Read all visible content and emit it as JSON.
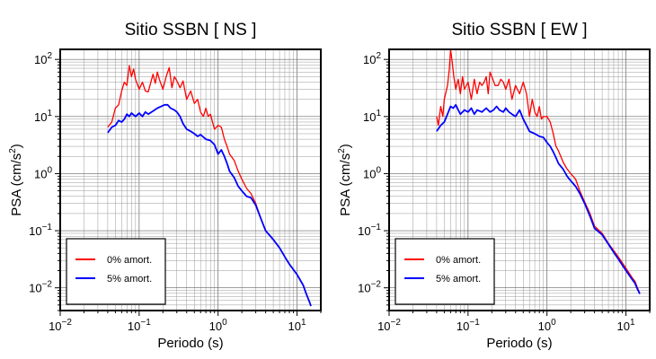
{
  "chart_data": [
    {
      "type": "line",
      "title": "Sitio SSBN [ NS ]",
      "xlabel": "Periodo (s)",
      "ylabel_main": "PSA (cm/s",
      "ylabel_sup": "2",
      "ylabel_end": ")",
      "xscale": "log",
      "yscale": "log",
      "xlim": [
        0.01,
        20
      ],
      "ylim": [
        0.004,
        150
      ],
      "grid": true,
      "legend_position": "bottom-left",
      "x_tick_labels": [
        {
          "value": 0.01,
          "base": "10",
          "exp": "-2"
        },
        {
          "value": 0.1,
          "base": "10",
          "exp": "-1"
        },
        {
          "value": 1,
          "base": "10",
          "exp": "0"
        },
        {
          "value": 10,
          "base": "10",
          "exp": "1"
        }
      ],
      "y_tick_labels": [
        {
          "value": 0.01,
          "base": "10",
          "exp": "-2"
        },
        {
          "value": 0.1,
          "base": "10",
          "exp": "-1"
        },
        {
          "value": 1,
          "base": "10",
          "exp": "0"
        },
        {
          "value": 10,
          "base": "10",
          "exp": "1"
        },
        {
          "value": 100,
          "base": "10",
          "exp": "2"
        }
      ],
      "series": [
        {
          "name": "0% amort.",
          "color": "#ff0000",
          "points": [
            [
              0.04,
              6.5
            ],
            [
              0.045,
              8
            ],
            [
              0.05,
              14
            ],
            [
              0.055,
              16
            ],
            [
              0.06,
              28
            ],
            [
              0.065,
              40
            ],
            [
              0.07,
              35
            ],
            [
              0.075,
              78
            ],
            [
              0.08,
              50
            ],
            [
              0.085,
              68
            ],
            [
              0.09,
              45
            ],
            [
              0.1,
              30
            ],
            [
              0.11,
              40
            ],
            [
              0.12,
              28
            ],
            [
              0.13,
              27
            ],
            [
              0.15,
              55
            ],
            [
              0.16,
              38
            ],
            [
              0.17,
              60
            ],
            [
              0.18,
              45
            ],
            [
              0.2,
              30
            ],
            [
              0.22,
              50
            ],
            [
              0.24,
              72
            ],
            [
              0.26,
              32
            ],
            [
              0.28,
              50
            ],
            [
              0.3,
              42
            ],
            [
              0.33,
              32
            ],
            [
              0.36,
              42
            ],
            [
              0.4,
              20
            ],
            [
              0.45,
              28
            ],
            [
              0.5,
              17
            ],
            [
              0.55,
              20
            ],
            [
              0.6,
              12
            ],
            [
              0.65,
              10
            ],
            [
              0.7,
              14
            ],
            [
              0.75,
              10
            ],
            [
              0.8,
              11
            ],
            [
              0.85,
              8
            ],
            [
              0.9,
              6
            ],
            [
              1.0,
              7
            ],
            [
              1.1,
              6.5
            ],
            [
              1.2,
              4
            ],
            [
              1.3,
              3
            ],
            [
              1.4,
              2.2
            ],
            [
              1.6,
              1.7
            ],
            [
              1.8,
              1.1
            ],
            [
              2.0,
              0.8
            ],
            [
              2.3,
              0.55
            ],
            [
              2.6,
              0.45
            ],
            [
              3.0,
              0.3
            ],
            [
              3.5,
              0.16
            ],
            [
              4.0,
              0.1
            ],
            [
              5.0,
              0.07
            ],
            [
              6.0,
              0.05
            ],
            [
              7.0,
              0.035
            ],
            [
              8.0,
              0.026
            ],
            [
              10,
              0.017
            ],
            [
              12,
              0.011
            ],
            [
              13,
              0.008
            ],
            [
              14.5,
              0.0055
            ],
            [
              15,
              0.0048
            ]
          ]
        },
        {
          "name": "5% amort.",
          "color": "#0000ff",
          "points": [
            [
              0.04,
              5.2
            ],
            [
              0.045,
              6.5
            ],
            [
              0.05,
              7
            ],
            [
              0.055,
              8.5
            ],
            [
              0.06,
              8
            ],
            [
              0.065,
              9
            ],
            [
              0.07,
              11
            ],
            [
              0.075,
              10
            ],
            [
              0.08,
              11.5
            ],
            [
              0.09,
              10
            ],
            [
              0.1,
              11.5
            ],
            [
              0.11,
              10
            ],
            [
              0.12,
              12
            ],
            [
              0.13,
              11
            ],
            [
              0.15,
              12.5
            ],
            [
              0.17,
              14
            ],
            [
              0.19,
              15
            ],
            [
              0.21,
              16
            ],
            [
              0.23,
              16
            ],
            [
              0.25,
              14
            ],
            [
              0.28,
              13
            ],
            [
              0.3,
              12
            ],
            [
              0.33,
              10
            ],
            [
              0.36,
              7.5
            ],
            [
              0.4,
              6
            ],
            [
              0.45,
              5.5
            ],
            [
              0.5,
              5
            ],
            [
              0.55,
              4.5
            ],
            [
              0.6,
              4.8
            ],
            [
              0.7,
              4
            ],
            [
              0.8,
              3.8
            ],
            [
              0.9,
              3.2
            ],
            [
              1.0,
              2.2
            ],
            [
              1.1,
              2.6
            ],
            [
              1.2,
              2
            ],
            [
              1.3,
              1.5
            ],
            [
              1.4,
              1.1
            ],
            [
              1.6,
              0.85
            ],
            [
              1.8,
              0.6
            ],
            [
              2.0,
              0.5
            ],
            [
              2.3,
              0.4
            ],
            [
              2.6,
              0.38
            ],
            [
              3.0,
              0.28
            ],
            [
              3.5,
              0.16
            ],
            [
              4.0,
              0.1
            ],
            [
              5.0,
              0.07
            ],
            [
              6.0,
              0.05
            ],
            [
              7.0,
              0.035
            ],
            [
              8.0,
              0.026
            ],
            [
              10,
              0.017
            ],
            [
              12,
              0.011
            ],
            [
              13,
              0.008
            ],
            [
              14.5,
              0.0055
            ],
            [
              15,
              0.0048
            ]
          ]
        }
      ]
    },
    {
      "type": "line",
      "title": "Sitio SSBN [ EW ]",
      "xlabel": "Periodo (s)",
      "ylabel_main": "PSA (cm/s",
      "ylabel_sup": "2",
      "ylabel_end": ")",
      "xscale": "log",
      "yscale": "log",
      "xlim": [
        0.01,
        20
      ],
      "ylim": [
        0.004,
        150
      ],
      "grid": true,
      "legend_position": "bottom-left",
      "x_tick_labels": [
        {
          "value": 0.01,
          "base": "10",
          "exp": "-2"
        },
        {
          "value": 0.1,
          "base": "10",
          "exp": "-1"
        },
        {
          "value": 1,
          "base": "10",
          "exp": "0"
        },
        {
          "value": 10,
          "base": "10",
          "exp": "1"
        }
      ],
      "y_tick_labels": [
        {
          "value": 0.01,
          "base": "10",
          "exp": "-2"
        },
        {
          "value": 0.1,
          "base": "10",
          "exp": "-1"
        },
        {
          "value": 1,
          "base": "10",
          "exp": "0"
        },
        {
          "value": 10,
          "base": "10",
          "exp": "1"
        },
        {
          "value": 100,
          "base": "10",
          "exp": "2"
        }
      ],
      "series": [
        {
          "name": "0% amort.",
          "color": "#ff0000",
          "points": [
            [
              0.04,
              10
            ],
            [
              0.042,
              7
            ],
            [
              0.045,
              15
            ],
            [
              0.048,
              10
            ],
            [
              0.05,
              20
            ],
            [
              0.055,
              35
            ],
            [
              0.058,
              70
            ],
            [
              0.06,
              150
            ],
            [
              0.063,
              90
            ],
            [
              0.066,
              50
            ],
            [
              0.07,
              30
            ],
            [
              0.075,
              45
            ],
            [
              0.08,
              25
            ],
            [
              0.085,
              50
            ],
            [
              0.09,
              30
            ],
            [
              0.1,
              40
            ],
            [
              0.11,
              20
            ],
            [
              0.12,
              45
            ],
            [
              0.13,
              25
            ],
            [
              0.14,
              40
            ],
            [
              0.15,
              35
            ],
            [
              0.16,
              40
            ],
            [
              0.17,
              50
            ],
            [
              0.18,
              25
            ],
            [
              0.19,
              60
            ],
            [
              0.2,
              50
            ],
            [
              0.22,
              35
            ],
            [
              0.24,
              35
            ],
            [
              0.26,
              45
            ],
            [
              0.28,
              40
            ],
            [
              0.3,
              30
            ],
            [
              0.33,
              45
            ],
            [
              0.36,
              20
            ],
            [
              0.4,
              35
            ],
            [
              0.45,
              25
            ],
            [
              0.5,
              40
            ],
            [
              0.55,
              25
            ],
            [
              0.6,
              10
            ],
            [
              0.65,
              20
            ],
            [
              0.7,
              12
            ],
            [
              0.75,
              10
            ],
            [
              0.8,
              15
            ],
            [
              0.85,
              9
            ],
            [
              0.9,
              10
            ],
            [
              1.0,
              10
            ],
            [
              1.1,
              8
            ],
            [
              1.2,
              5
            ],
            [
              1.3,
              3
            ],
            [
              1.4,
              2.5
            ],
            [
              1.6,
              1.6
            ],
            [
              1.8,
              1.2
            ],
            [
              2.0,
              1.0
            ],
            [
              2.3,
              0.8
            ],
            [
              2.6,
              0.5
            ],
            [
              3.0,
              0.32
            ],
            [
              3.5,
              0.2
            ],
            [
              4.0,
              0.12
            ],
            [
              5.0,
              0.09
            ],
            [
              6.0,
              0.06
            ],
            [
              7.0,
              0.045
            ],
            [
              8.0,
              0.035
            ],
            [
              10,
              0.022
            ],
            [
              12,
              0.015
            ],
            [
              13,
              0.013
            ],
            [
              14,
              0.01
            ],
            [
              15,
              0.008
            ]
          ]
        },
        {
          "name": "5% amort.",
          "color": "#0000ff",
          "points": [
            [
              0.04,
              5.5
            ],
            [
              0.045,
              7
            ],
            [
              0.05,
              8
            ],
            [
              0.055,
              11
            ],
            [
              0.06,
              15
            ],
            [
              0.065,
              14
            ],
            [
              0.07,
              16
            ],
            [
              0.075,
              13
            ],
            [
              0.08,
              11
            ],
            [
              0.09,
              13
            ],
            [
              0.1,
              12
            ],
            [
              0.11,
              14
            ],
            [
              0.12,
              11
            ],
            [
              0.13,
              13
            ],
            [
              0.15,
              12
            ],
            [
              0.17,
              14
            ],
            [
              0.19,
              12
            ],
            [
              0.21,
              13
            ],
            [
              0.23,
              15
            ],
            [
              0.25,
              13
            ],
            [
              0.28,
              12
            ],
            [
              0.3,
              14
            ],
            [
              0.33,
              12
            ],
            [
              0.36,
              11
            ],
            [
              0.4,
              10
            ],
            [
              0.45,
              13
            ],
            [
              0.5,
              9
            ],
            [
              0.55,
              7
            ],
            [
              0.6,
              5.5
            ],
            [
              0.7,
              5
            ],
            [
              0.8,
              4.5
            ],
            [
              0.9,
              4.3
            ],
            [
              1.0,
              3.5
            ],
            [
              1.1,
              3
            ],
            [
              1.2,
              2.4
            ],
            [
              1.3,
              1.9
            ],
            [
              1.4,
              1.5
            ],
            [
              1.6,
              1.2
            ],
            [
              1.8,
              0.9
            ],
            [
              2.0,
              0.75
            ],
            [
              2.3,
              0.6
            ],
            [
              2.6,
              0.45
            ],
            [
              3.0,
              0.3
            ],
            [
              3.5,
              0.18
            ],
            [
              4.0,
              0.11
            ],
            [
              5.0,
              0.085
            ],
            [
              6.0,
              0.058
            ],
            [
              7.0,
              0.042
            ],
            [
              8.0,
              0.032
            ],
            [
              10,
              0.02
            ],
            [
              12,
              0.014
            ],
            [
              13,
              0.012
            ],
            [
              14,
              0.0095
            ],
            [
              15,
              0.0078
            ]
          ]
        }
      ]
    }
  ]
}
